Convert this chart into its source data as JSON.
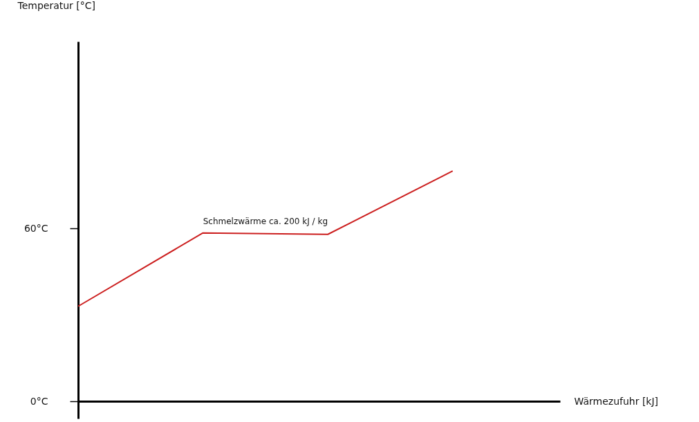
{
  "chart_data": {
    "type": "line",
    "xlabel": "Wärmezufuhr [kJ]",
    "ylabel": "Temperatur [°C]",
    "categories": [
      null,
      null,
      null,
      null
    ],
    "series": [
      {
        "color": "#cc1f1f",
        "values": [
          33,
          58.5,
          58,
          80
        ]
      }
    ],
    "ylim": [
      -6,
      125
    ],
    "yticks": [
      {
        "value": 0,
        "label": "0°C"
      },
      {
        "value": 60,
        "label": "60°C"
      }
    ],
    "annotations": [
      "Schmelzwärme ca. 200 kJ / kg"
    ],
    "tick_labels": "y",
    "marker": "none",
    "line_style": "solid"
  }
}
